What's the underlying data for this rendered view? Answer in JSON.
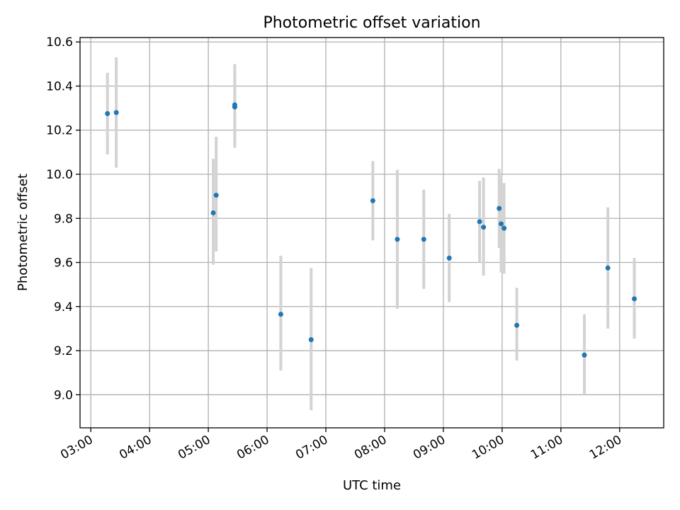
{
  "chart_data": {
    "type": "scatter",
    "title": "Photometric offset variation",
    "xlabel": "UTC time",
    "ylabel": "Photometric offset",
    "x_axis_kind": "time",
    "xlim": [
      "02:49",
      "12:45"
    ],
    "ylim": [
      8.85,
      10.62
    ],
    "x_ticks": [
      "03:00",
      "04:00",
      "05:00",
      "06:00",
      "07:00",
      "08:00",
      "09:00",
      "10:00",
      "11:00",
      "12:00"
    ],
    "y_ticks": [
      "9.0",
      "9.2",
      "9.4",
      "9.6",
      "9.8",
      "10.0",
      "10.2",
      "10.4",
      "10.6"
    ],
    "grid": true,
    "colors": {
      "points": "#1f77b4",
      "error_bars": "#d3d3d3",
      "grid": "#b0b0b0"
    },
    "points": [
      {
        "x": "03:17",
        "y": 10.275,
        "yerr": [
          10.09,
          10.46
        ]
      },
      {
        "x": "03:26",
        "y": 10.28,
        "yerr": [
          10.03,
          10.53
        ]
      },
      {
        "x": "05:05",
        "y": 9.825,
        "yerr": [
          9.59,
          10.07
        ]
      },
      {
        "x": "05:08",
        "y": 9.905,
        "yerr": [
          9.65,
          10.17
        ]
      },
      {
        "x": "05:27",
        "y": 10.315,
        "yerr": [
          10.13,
          10.5
        ]
      },
      {
        "x": "05:27",
        "y": 10.305,
        "yerr": [
          10.12,
          10.49
        ]
      },
      {
        "x": "06:14",
        "y": 9.365,
        "yerr": [
          9.11,
          9.63
        ]
      },
      {
        "x": "06:45",
        "y": 9.25,
        "yerr": [
          8.93,
          9.575
        ]
      },
      {
        "x": "07:48",
        "y": 9.88,
        "yerr": [
          9.7,
          10.06
        ]
      },
      {
        "x": "08:13",
        "y": 9.705,
        "yerr": [
          9.39,
          10.02
        ]
      },
      {
        "x": "08:40",
        "y": 9.705,
        "yerr": [
          9.48,
          9.93
        ]
      },
      {
        "x": "09:06",
        "y": 9.62,
        "yerr": [
          9.42,
          9.82
        ]
      },
      {
        "x": "09:37",
        "y": 9.785,
        "yerr": [
          9.6,
          9.97
        ]
      },
      {
        "x": "09:41",
        "y": 9.76,
        "yerr": [
          9.54,
          9.985
        ]
      },
      {
        "x": "09:57",
        "y": 9.845,
        "yerr": [
          9.665,
          10.025
        ]
      },
      {
        "x": "09:59",
        "y": 9.775,
        "yerr": [
          9.555,
          9.995
        ]
      },
      {
        "x": "10:02",
        "y": 9.755,
        "yerr": [
          9.55,
          9.96
        ]
      },
      {
        "x": "10:15",
        "y": 9.315,
        "yerr": [
          9.155,
          9.485
        ]
      },
      {
        "x": "11:24",
        "y": 9.18,
        "yerr": [
          9.0,
          9.365
        ]
      },
      {
        "x": "11:48",
        "y": 9.575,
        "yerr": [
          9.3,
          9.85
        ]
      },
      {
        "x": "12:15",
        "y": 9.435,
        "yerr": [
          9.255,
          9.62
        ]
      }
    ]
  }
}
